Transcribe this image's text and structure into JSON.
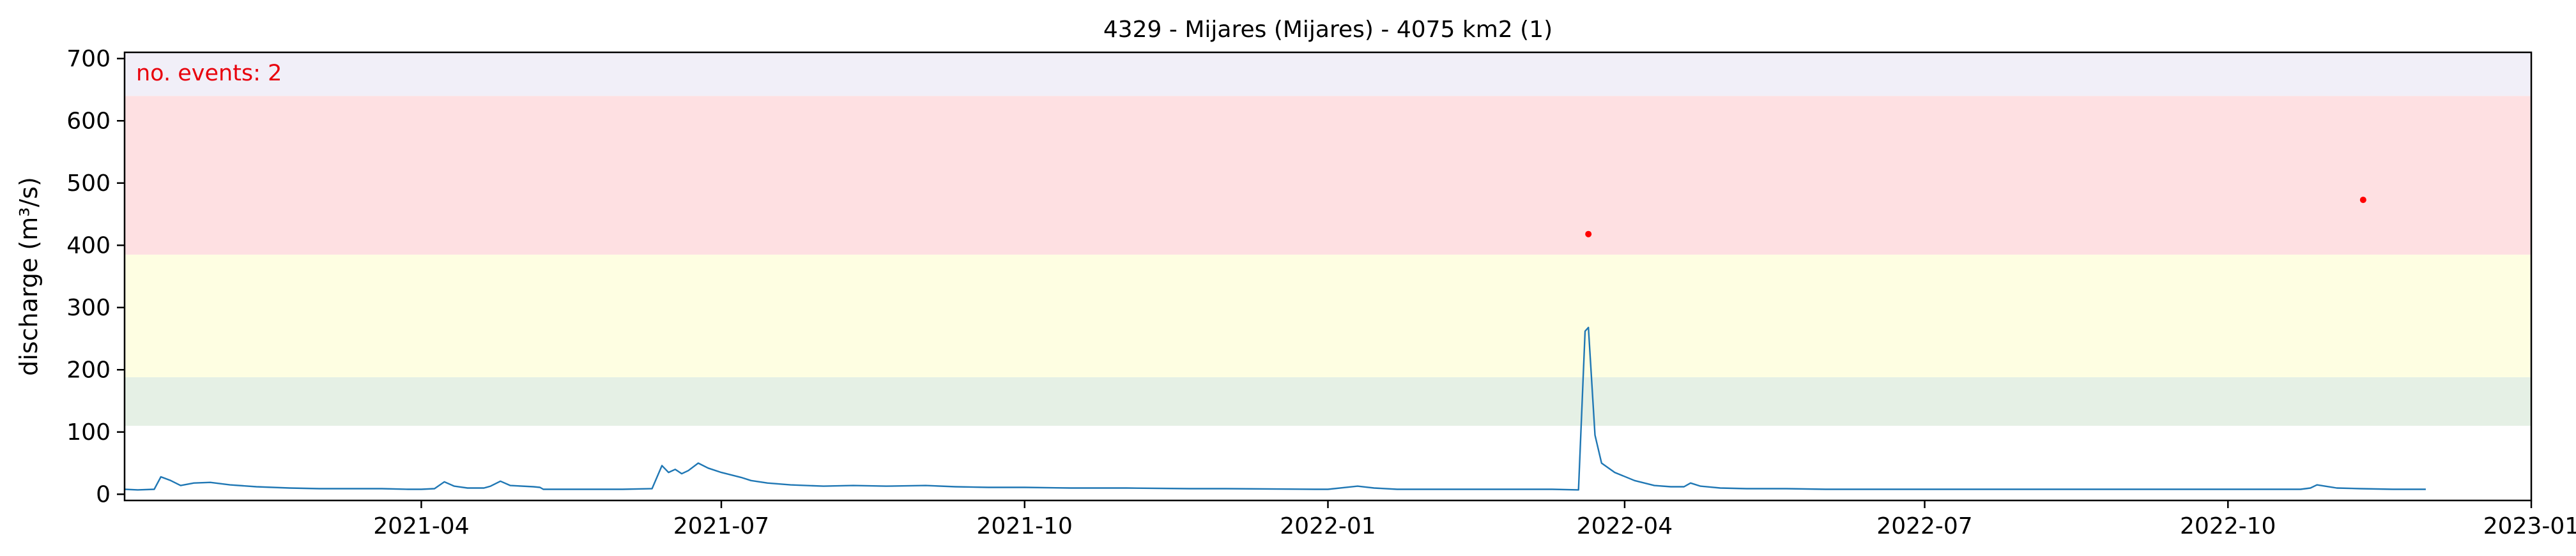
{
  "chart_data": {
    "type": "line",
    "title": "4329 - Mijares (Mijares) - 4075 km2 (1)",
    "xlabel": "",
    "ylabel": "discharge (m³/s)",
    "xlim": [
      "2021-01-01",
      "2023-01-01"
    ],
    "ylim": [
      -10,
      710
    ],
    "x_ticks": [
      "2021-04-01",
      "2021-07-01",
      "2021-10-01",
      "2022-01-01",
      "2022-04-01",
      "2022-07-01",
      "2022-10-01",
      "2023-01-01"
    ],
    "x_tick_labels": [
      "2021-04",
      "2021-07",
      "2021-10",
      "2022-01",
      "2022-04",
      "2022-07",
      "2022-10",
      "2023-01"
    ],
    "y_ticks": [
      0,
      100,
      200,
      300,
      400,
      500,
      600,
      700
    ],
    "y_tick_labels": [
      "0",
      "100",
      "200",
      "300",
      "400",
      "500",
      "600",
      "700"
    ],
    "grid": false,
    "threshold_bands": [
      {
        "from": 110,
        "to": 188,
        "color": "#e5f0e5"
      },
      {
        "from": 188,
        "to": 385,
        "color": "#fefee2"
      },
      {
        "from": 385,
        "to": 640,
        "color": "#fee0e2"
      },
      {
        "from": 640,
        "to": 710,
        "color": "#f1eff8"
      }
    ],
    "annotation": {
      "text": "no. events: 2",
      "color": "#e8000b"
    },
    "series": [
      {
        "color": "#1f77b4",
        "points": [
          [
            "2021-01-01",
            8
          ],
          [
            "2021-01-05",
            7
          ],
          [
            "2021-01-10",
            8
          ],
          [
            "2021-01-12",
            28
          ],
          [
            "2021-01-15",
            22
          ],
          [
            "2021-01-18",
            14
          ],
          [
            "2021-01-22",
            18
          ],
          [
            "2021-01-27",
            19
          ],
          [
            "2021-02-02",
            15
          ],
          [
            "2021-02-10",
            12
          ],
          [
            "2021-02-20",
            10
          ],
          [
            "2021-03-01",
            9
          ],
          [
            "2021-03-10",
            9
          ],
          [
            "2021-03-20",
            9
          ],
          [
            "2021-03-28",
            8
          ],
          [
            "2021-04-01",
            8
          ],
          [
            "2021-04-05",
            9
          ],
          [
            "2021-04-08",
            20
          ],
          [
            "2021-04-11",
            13
          ],
          [
            "2021-04-15",
            10
          ],
          [
            "2021-04-20",
            10
          ],
          [
            "2021-04-22",
            13
          ],
          [
            "2021-04-25",
            21
          ],
          [
            "2021-04-28",
            14
          ],
          [
            "2021-05-05",
            12
          ],
          [
            "2021-05-07",
            11
          ],
          [
            "2021-05-08",
            8
          ],
          [
            "2021-05-20",
            8
          ],
          [
            "2021-06-01",
            8
          ],
          [
            "2021-06-10",
            9
          ],
          [
            "2021-06-13",
            46
          ],
          [
            "2021-06-15",
            35
          ],
          [
            "2021-06-17",
            40
          ],
          [
            "2021-06-19",
            33
          ],
          [
            "2021-06-21",
            38
          ],
          [
            "2021-06-24",
            50
          ],
          [
            "2021-06-27",
            42
          ],
          [
            "2021-07-01",
            35
          ],
          [
            "2021-07-07",
            27
          ],
          [
            "2021-07-10",
            22
          ],
          [
            "2021-07-15",
            18
          ],
          [
            "2021-07-22",
            15
          ],
          [
            "2021-08-01",
            13
          ],
          [
            "2021-08-10",
            14
          ],
          [
            "2021-08-20",
            13
          ],
          [
            "2021-09-01",
            14
          ],
          [
            "2021-09-10",
            12
          ],
          [
            "2021-09-20",
            11
          ],
          [
            "2021-10-01",
            11
          ],
          [
            "2021-10-15",
            10
          ],
          [
            "2021-11-01",
            10
          ],
          [
            "2021-11-20",
            9
          ],
          [
            "2021-12-01",
            9
          ],
          [
            "2021-12-28",
            8
          ],
          [
            "2022-01-01",
            8
          ],
          [
            "2022-01-10",
            13
          ],
          [
            "2022-01-15",
            10
          ],
          [
            "2022-01-22",
            8
          ],
          [
            "2022-02-01",
            8
          ],
          [
            "2022-02-20",
            8
          ],
          [
            "2022-03-10",
            8
          ],
          [
            "2022-03-18",
            7
          ],
          [
            "2022-03-20",
            262
          ],
          [
            "2022-03-21",
            268
          ],
          [
            "2022-03-23",
            95
          ],
          [
            "2022-03-25",
            50
          ],
          [
            "2022-03-29",
            35
          ],
          [
            "2022-04-04",
            22
          ],
          [
            "2022-04-10",
            14
          ],
          [
            "2022-04-15",
            12
          ],
          [
            "2022-04-19",
            12
          ],
          [
            "2022-04-21",
            18
          ],
          [
            "2022-04-24",
            13
          ],
          [
            "2022-04-30",
            10
          ],
          [
            "2022-05-08",
            9
          ],
          [
            "2022-05-20",
            9
          ],
          [
            "2022-06-01",
            8
          ],
          [
            "2022-06-20",
            8
          ],
          [
            "2022-07-10",
            8
          ],
          [
            "2022-08-01",
            8
          ],
          [
            "2022-08-20",
            8
          ],
          [
            "2022-09-01",
            8
          ],
          [
            "2022-09-20",
            8
          ],
          [
            "2022-10-01",
            8
          ],
          [
            "2022-10-20",
            8
          ],
          [
            "2022-10-23",
            8
          ],
          [
            "2022-10-26",
            10
          ],
          [
            "2022-10-28",
            15
          ],
          [
            "2022-11-03",
            10
          ],
          [
            "2022-11-10",
            9
          ],
          [
            "2022-11-20",
            8
          ],
          [
            "2022-11-30",
            8
          ]
        ]
      }
    ],
    "events": [
      {
        "x": "2022-03-21",
        "y": 418,
        "color": "#ff0000"
      },
      {
        "x": "2022-11-11",
        "y": 473,
        "color": "#ff0000"
      }
    ]
  }
}
